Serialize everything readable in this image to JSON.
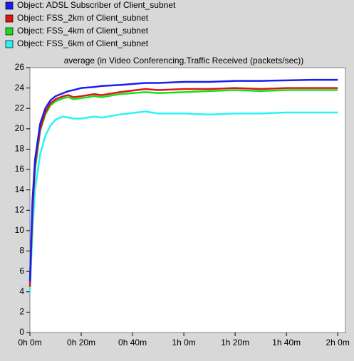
{
  "chart_data": {
    "type": "line",
    "title": "average (in Video Conferencing.Traffic Received (packets/sec))",
    "x": [
      0,
      1,
      2,
      4,
      6,
      8,
      10,
      13,
      15,
      17,
      20,
      25,
      28,
      35,
      45,
      50,
      60,
      70,
      80,
      90,
      100,
      110,
      120
    ],
    "series": [
      {
        "name": "Object: ADSL Subscriber of Client_subnet",
        "color": "#1c1cf0",
        "values": [
          5,
          13,
          17,
          20.5,
          22,
          22.8,
          23.2,
          23.5,
          23.7,
          23.8,
          24,
          24.1,
          24.2,
          24.3,
          24.5,
          24.5,
          24.6,
          24.6,
          24.7,
          24.7,
          24.75,
          24.8,
          24.8
        ]
      },
      {
        "name": "Object: FSS_2km of Client_subnet",
        "color": "#e01414",
        "values": [
          4.5,
          12,
          16.5,
          20,
          21.6,
          22.5,
          22.9,
          23.2,
          23.3,
          23.1,
          23.2,
          23.4,
          23.3,
          23.6,
          23.9,
          23.8,
          23.9,
          23.9,
          24.0,
          23.9,
          24.0,
          24.0,
          24.0
        ]
      },
      {
        "name": "Object: FSS_4km of Client_subnet",
        "color": "#18e018",
        "values": [
          4.5,
          12,
          16,
          19.8,
          21.4,
          22.3,
          22.7,
          23.0,
          23.1,
          22.9,
          23.0,
          23.2,
          23.1,
          23.4,
          23.6,
          23.5,
          23.6,
          23.7,
          23.8,
          23.7,
          23.8,
          23.8,
          23.8
        ]
      },
      {
        "name": "Object: FSS_6km of Client_subnet",
        "color": "#28f4f4",
        "values": [
          4,
          10,
          14,
          17.5,
          19.3,
          20.3,
          20.9,
          21.2,
          21.1,
          21.0,
          21.0,
          21.2,
          21.1,
          21.4,
          21.7,
          21.5,
          21.5,
          21.4,
          21.5,
          21.5,
          21.6,
          21.6,
          21.6
        ]
      }
    ],
    "xlim": [
      0,
      123
    ],
    "xticks": [
      {
        "value": 0,
        "label": "0h 0m"
      },
      {
        "value": 20,
        "label": "0h 20m"
      },
      {
        "value": 40,
        "label": "0h 40m"
      },
      {
        "value": 60,
        "label": "1h 0m"
      },
      {
        "value": 80,
        "label": "1h 20m"
      },
      {
        "value": 100,
        "label": "1h 40m"
      },
      {
        "value": 120,
        "label": "2h 0m"
      }
    ],
    "ylim": [
      0,
      26
    ],
    "yticks": [
      0,
      2,
      4,
      6,
      8,
      10,
      12,
      14,
      16,
      18,
      20,
      22,
      24,
      26
    ],
    "grid": false
  }
}
